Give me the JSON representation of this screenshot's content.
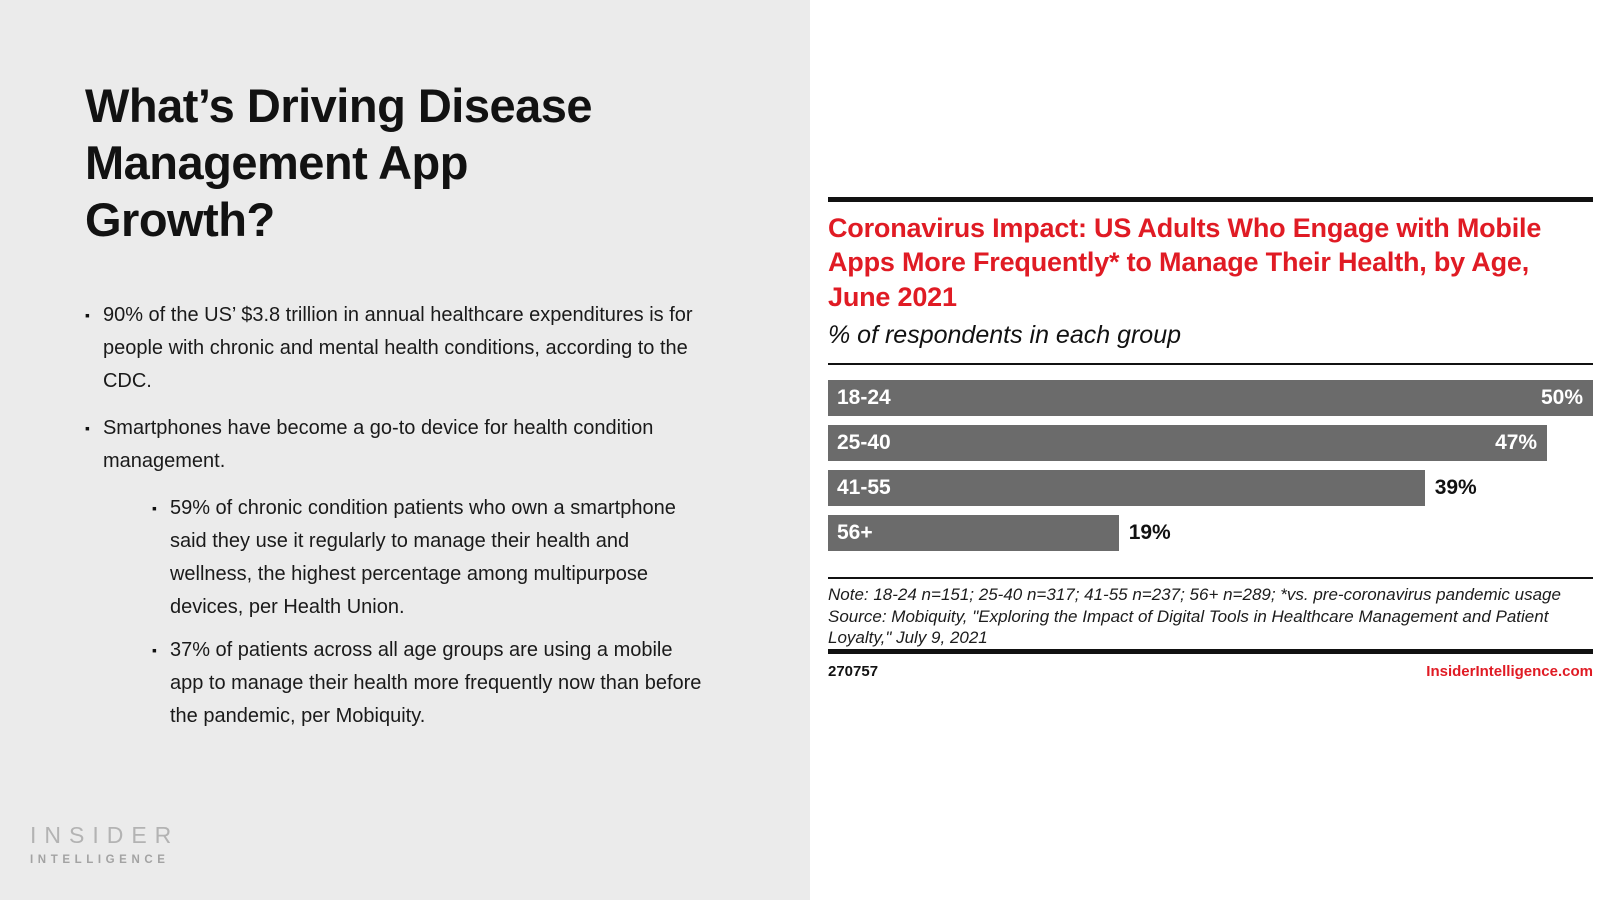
{
  "left": {
    "title_lines": [
      "What’s Driving Disease",
      "Management App",
      "Growth?"
    ],
    "bullets": [
      "90% of the US’ $3.8 trillion in annual healthcare expenditures is for people with chronic and mental health conditions, according to the CDC.",
      "Smartphones have become a go-to device for health condition management."
    ],
    "sub_bullets": [
      "59% of chronic condition patients who own a smartphone said they use it regularly to manage their health and wellness, the highest percentage among multipurpose devices, per Health Union.",
      "37% of patients across all age groups are using a mobile app to manage their health more frequently now than before the pandemic, per Mobiquity."
    ],
    "bullet_glyph": "▪"
  },
  "logo": {
    "line1": "INSIDER",
    "line2": "INTELLIGENCE"
  },
  "chart": {
    "title": "Coronavirus Impact: US Adults Who Engage with Mobile Apps More Frequently* to Manage Their Health, by Age, June 2021",
    "subtitle": "% of respondents in each group",
    "note": "Note: 18-24 n=151; 25-40 n=317; 41-55 n=237; 56+ n=289; *vs. pre-coronavirus pandemic usage",
    "source": "Source: Mobiquity, \"Exploring the Impact of Digital Tools in Healthcare Management and Patient Loyalty,\" July 9, 2021",
    "chart_id": "270757",
    "credit": "InsiderIntelligence.com"
  },
  "chart_data": {
    "type": "bar",
    "orientation": "horizontal",
    "title": "Coronavirus Impact: US Adults Who Engage with Mobile Apps More Frequently* to Manage Their Health, by Age, June 2021",
    "subtitle": "% of respondents in each group",
    "categories": [
      "18-24",
      "25-40",
      "41-55",
      "56+"
    ],
    "values": [
      50,
      47,
      39,
      19
    ],
    "value_labels": [
      "50%",
      "47%",
      "39%",
      "19%"
    ],
    "unit": "%",
    "xlabel": "",
    "ylabel": "",
    "xlim": [
      0,
      50
    ],
    "grid": false,
    "legend": false,
    "bar_color": "#6b6b6b",
    "inside_label_threshold": 0.85
  },
  "colors": {
    "accent_red": "#e01b24",
    "bar_gray": "#6b6b6b",
    "left_background": "#ebebeb",
    "logo_gray": "#b3b3b3"
  }
}
